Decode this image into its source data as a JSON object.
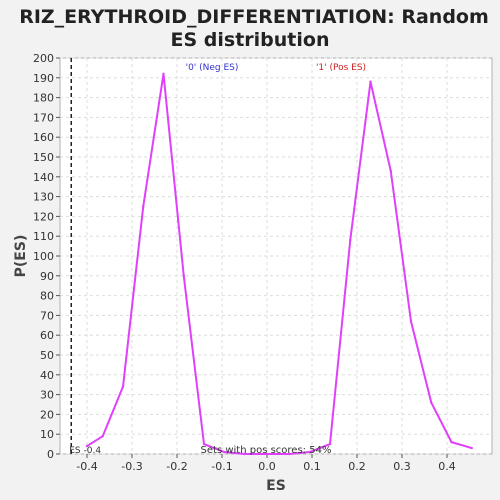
{
  "chart_data": {
    "type": "line",
    "title_line1": "RIZ_ERYTHROID_DIFFERENTIATION: Random",
    "title_line2": "ES distribution",
    "xlabel": "ES",
    "ylabel": "P(ES)",
    "xlim": [
      -0.46,
      0.5
    ],
    "ylim": [
      0,
      200
    ],
    "xticks": [
      -0.4,
      -0.3,
      -0.2,
      -0.1,
      0.0,
      0.1,
      0.2,
      0.3,
      0.4
    ],
    "xtick_labels": [
      "-0.4",
      "-0.3",
      "-0.2",
      "-0.1",
      "0.0",
      "0.1",
      "0.2",
      "0.3",
      "0.4"
    ],
    "yticks": [
      0,
      10,
      20,
      30,
      40,
      50,
      60,
      70,
      80,
      90,
      100,
      110,
      120,
      130,
      140,
      150,
      160,
      170,
      180,
      190,
      200
    ],
    "ytick_labels": [
      "0",
      "10",
      "20",
      "30",
      "40",
      "50",
      "60",
      "70",
      "80",
      "90",
      "100",
      "110",
      "120",
      "130",
      "140",
      "150",
      "160",
      "170",
      "180",
      "190",
      "200"
    ],
    "grid": true,
    "series": [
      {
        "color": "#e040fb",
        "x": [
          -0.4,
          -0.365,
          -0.32,
          -0.275,
          -0.23,
          -0.185,
          -0.14,
          -0.095,
          -0.05,
          0.0,
          0.05,
          0.095,
          0.14,
          0.185,
          0.23,
          0.275,
          0.32,
          0.365,
          0.41,
          0.455
        ],
        "y": [
          4,
          9,
          34,
          125,
          192,
          90,
          5,
          1,
          0,
          0,
          0,
          1,
          5,
          108,
          188,
          143,
          67,
          26,
          6,
          3
        ]
      }
    ],
    "annotations": {
      "neg_label": "'0' (Neg ES)",
      "pos_label": "'1' (Pos ES)",
      "neg_color": "#3333cc",
      "pos_color": "#cc2222",
      "es_marker_label": "ES -0.4",
      "es_marker_x": -0.435,
      "pos_scores_text": "Sets with pos scores: 54%"
    }
  }
}
